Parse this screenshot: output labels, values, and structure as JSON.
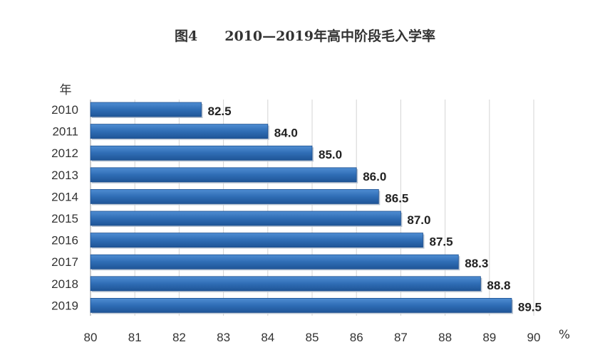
{
  "chart_data": {
    "type": "bar",
    "orientation": "horizontal",
    "title": "图4　　2010—2019年高中阶段毛入学率",
    "ylabel": "年",
    "xlabel": "%",
    "categories": [
      "2010",
      "2011",
      "2012",
      "2013",
      "2014",
      "2015",
      "2016",
      "2017",
      "2018",
      "2019"
    ],
    "values": [
      82.5,
      84.0,
      85.0,
      86.0,
      86.5,
      87.0,
      87.5,
      88.3,
      88.8,
      89.5
    ],
    "value_labels": [
      "82.5",
      "84.0",
      "85.0",
      "86.0",
      "86.5",
      "87.0",
      "87.5",
      "88.3",
      "88.8",
      "89.5"
    ],
    "xlim": [
      80,
      90
    ],
    "ticks": [
      80,
      81,
      82,
      83,
      84,
      85,
      86,
      87,
      88,
      89,
      90
    ],
    "grid": true,
    "bar_color": "#2f6db5"
  }
}
